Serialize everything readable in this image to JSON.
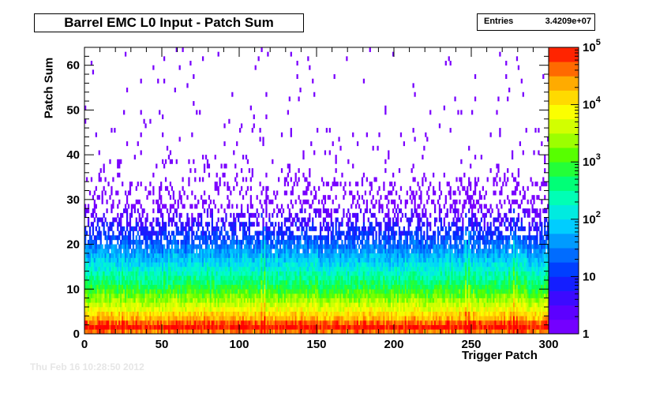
{
  "title": "Barrel EMC L0 Input - Patch Sum",
  "stats": {
    "label": "Entries",
    "value": "3.4209e+07"
  },
  "timestamp": "Thu Feb 16 10:28:50 2012",
  "chart_data": {
    "type": "heatmap",
    "title": "Barrel EMC L0 Input - Patch Sum",
    "xlabel": "Trigger Patch",
    "ylabel": "Patch Sum",
    "xlim": [
      0,
      300
    ],
    "ylim": [
      0,
      64
    ],
    "x_ticks": [
      "0",
      "50",
      "100",
      "150",
      "200",
      "250",
      "300"
    ],
    "y_ticks": [
      "0",
      "10",
      "20",
      "30",
      "40",
      "50",
      "60"
    ],
    "z_scale": "log",
    "zlim": [
      1,
      100000
    ],
    "z_ticks": [
      {
        "base": "1",
        "exp": ""
      },
      {
        "base": "10",
        "exp": ""
      },
      {
        "base": "10",
        "exp": "2"
      },
      {
        "base": "10",
        "exp": "3"
      },
      {
        "base": "10",
        "exp": "4"
      },
      {
        "base": "10",
        "exp": "5"
      }
    ],
    "entries": "3.4209e+07",
    "profile_log10_vs_patch_sum": [
      [
        0,
        4.6
      ],
      [
        1,
        5.0
      ],
      [
        2,
        4.7
      ],
      [
        3,
        4.3
      ],
      [
        4,
        4.1
      ],
      [
        5,
        3.8
      ],
      [
        6,
        3.6
      ],
      [
        7,
        3.4
      ],
      [
        8,
        3.2
      ],
      [
        9,
        3.0
      ],
      [
        10,
        2.8
      ],
      [
        12,
        2.5
      ],
      [
        14,
        2.2
      ],
      [
        16,
        1.9
      ],
      [
        18,
        1.6
      ],
      [
        20,
        1.3
      ],
      [
        22,
        1.0
      ],
      [
        24,
        0.7
      ],
      [
        26,
        0.4
      ],
      [
        30,
        0.1
      ]
    ],
    "hot_columns": [
      114,
      116,
      246,
      248,
      277,
      279
    ]
  }
}
